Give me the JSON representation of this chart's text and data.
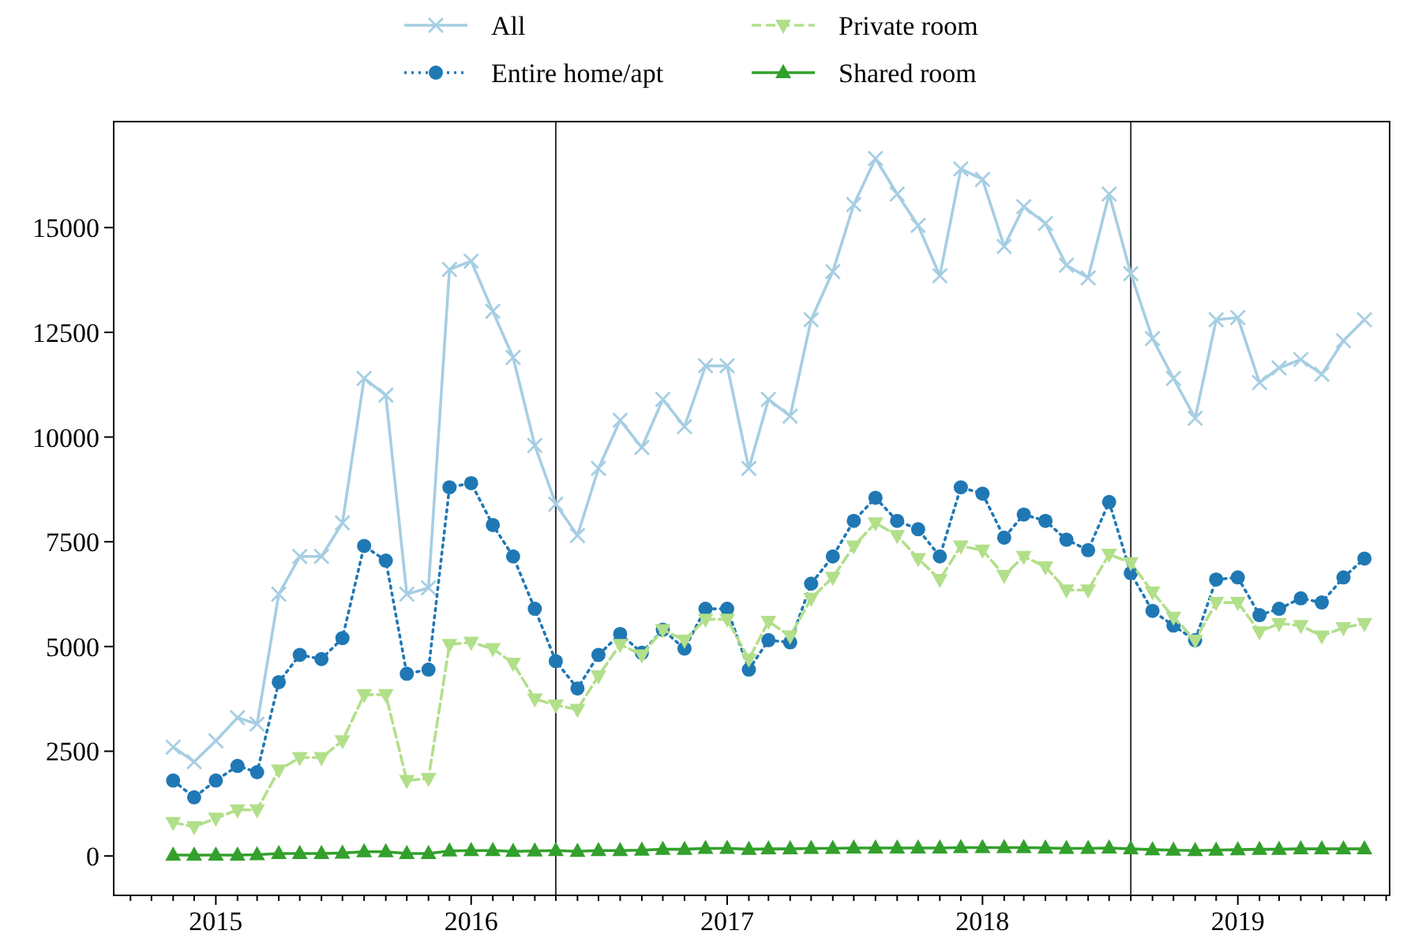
{
  "chart_data": {
    "type": "line",
    "x": [
      "2014-11",
      "2014-12",
      "2015-01",
      "2015-02",
      "2015-03",
      "2015-04",
      "2015-05",
      "2015-06",
      "2015-07",
      "2015-08",
      "2015-09",
      "2015-10",
      "2015-11",
      "2015-12",
      "2016-01",
      "2016-02",
      "2016-03",
      "2016-04",
      "2016-05",
      "2016-06",
      "2016-07",
      "2016-08",
      "2016-09",
      "2016-10",
      "2016-11",
      "2016-12",
      "2017-01",
      "2017-02",
      "2017-03",
      "2017-04",
      "2017-05",
      "2017-06",
      "2017-07",
      "2017-08",
      "2017-09",
      "2017-10",
      "2017-11",
      "2017-12",
      "2018-01",
      "2018-02",
      "2018-03",
      "2018-04",
      "2018-05",
      "2018-06",
      "2018-07",
      "2018-08",
      "2018-09",
      "2018-10",
      "2018-11",
      "2018-12",
      "2019-01",
      "2019-02",
      "2019-03",
      "2019-04",
      "2019-05",
      "2019-06",
      "2019-07"
    ],
    "series": [
      {
        "name": "All",
        "color": "#a6cee3",
        "marker": "cross",
        "line_style": "solid",
        "values": [
          2600,
          2250,
          2750,
          3300,
          3150,
          6250,
          7150,
          7150,
          7950,
          11400,
          11000,
          6250,
          6400,
          14000,
          14200,
          13000,
          11900,
          9800,
          8400,
          7650,
          9250,
          10400,
          9750,
          10900,
          10250,
          11700,
          11700,
          9250,
          10900,
          10500,
          12800,
          13950,
          15550,
          16650,
          15800,
          15050,
          13850,
          16400,
          16150,
          14550,
          15500,
          15100,
          14100,
          13800,
          15800,
          13900,
          12350,
          11400,
          10450,
          12800,
          12850,
          11300,
          11650,
          11850,
          11500,
          12300,
          12800
        ]
      },
      {
        "name": "Entire home/apt",
        "color": "#1f78b4",
        "marker": "circle",
        "line_style": "dotted",
        "values": [
          1800,
          1400,
          1800,
          2150,
          2000,
          4150,
          4800,
          4700,
          5200,
          7400,
          7050,
          4350,
          4450,
          8800,
          8900,
          7900,
          7150,
          5900,
          4650,
          4000,
          4800,
          5300,
          4850,
          5400,
          4950,
          5900,
          5900,
          4450,
          5150,
          5100,
          6500,
          7150,
          8000,
          8550,
          8000,
          7800,
          7150,
          8800,
          8650,
          7600,
          8150,
          8000,
          7550,
          7300,
          8450,
          6750,
          5850,
          5500,
          5150,
          6600,
          6650,
          5750,
          5900,
          6150,
          6050,
          6650,
          7100
        ]
      },
      {
        "name": "Private room",
        "color": "#b2df8a",
        "marker": "triangle-down",
        "line_style": "dashed",
        "values": [
          800,
          700,
          900,
          1100,
          1100,
          2050,
          2350,
          2350,
          2750,
          3850,
          3850,
          1800,
          1850,
          5050,
          5100,
          4950,
          4600,
          3750,
          3600,
          3500,
          4300,
          5050,
          4800,
          5400,
          5150,
          5650,
          5650,
          4700,
          5600,
          5250,
          6150,
          6650,
          7400,
          7950,
          7650,
          7100,
          6600,
          7400,
          7300,
          6700,
          7150,
          6900,
          6350,
          6350,
          7200,
          7000,
          6300,
          5700,
          5150,
          6050,
          6050,
          5350,
          5550,
          5500,
          5250,
          5450,
          5550
        ]
      },
      {
        "name": "Shared room",
        "color": "#33a02c",
        "marker": "triangle",
        "line_style": "solid",
        "values": [
          20,
          20,
          20,
          20,
          30,
          60,
          60,
          60,
          70,
          100,
          100,
          60,
          60,
          120,
          130,
          130,
          110,
          120,
          130,
          110,
          130,
          130,
          140,
          160,
          160,
          180,
          180,
          160,
          170,
          170,
          180,
          180,
          190,
          190,
          190,
          190,
          190,
          200,
          200,
          200,
          200,
          190,
          180,
          180,
          190,
          170,
          150,
          140,
          130,
          140,
          150,
          160,
          160,
          170,
          170,
          170,
          170
        ]
      }
    ],
    "xlim": [
      "2014-08-08",
      "2019-08-06"
    ],
    "ylim": [
      -940,
      17530
    ],
    "yticks": [
      0,
      2500,
      5000,
      7500,
      10000,
      12500,
      15000
    ],
    "xticks": [
      {
        "value": "2014-09",
        "label": null
      },
      {
        "value": "2014-10",
        "label": null
      },
      {
        "value": "2014-11",
        "label": null
      },
      {
        "value": "2014-12",
        "label": null
      },
      {
        "value": "2015-01",
        "label": "2015"
      },
      {
        "value": "2015-02",
        "label": null
      },
      {
        "value": "2015-03",
        "label": null
      },
      {
        "value": "2015-04",
        "label": null
      },
      {
        "value": "2015-05",
        "label": null
      },
      {
        "value": "2015-06",
        "label": null
      },
      {
        "value": "2015-07",
        "label": null
      },
      {
        "value": "2015-08",
        "label": null
      },
      {
        "value": "2015-09",
        "label": null
      },
      {
        "value": "2015-10",
        "label": null
      },
      {
        "value": "2015-11",
        "label": null
      },
      {
        "value": "2015-12",
        "label": null
      },
      {
        "value": "2016-01",
        "label": "2016"
      },
      {
        "value": "2016-02",
        "label": null
      },
      {
        "value": "2016-03",
        "label": null
      },
      {
        "value": "2016-04",
        "label": null
      },
      {
        "value": "2016-05",
        "label": null
      },
      {
        "value": "2016-06",
        "label": null
      },
      {
        "value": "2016-07",
        "label": null
      },
      {
        "value": "2016-08",
        "label": null
      },
      {
        "value": "2016-09",
        "label": null
      },
      {
        "value": "2016-10",
        "label": null
      },
      {
        "value": "2016-11",
        "label": null
      },
      {
        "value": "2016-12",
        "label": null
      },
      {
        "value": "2017-01",
        "label": "2017"
      },
      {
        "value": "2017-02",
        "label": null
      },
      {
        "value": "2017-03",
        "label": null
      },
      {
        "value": "2017-04",
        "label": null
      },
      {
        "value": "2017-05",
        "label": null
      },
      {
        "value": "2017-06",
        "label": null
      },
      {
        "value": "2017-07",
        "label": null
      },
      {
        "value": "2017-08",
        "label": null
      },
      {
        "value": "2017-09",
        "label": null
      },
      {
        "value": "2017-10",
        "label": null
      },
      {
        "value": "2017-11",
        "label": null
      },
      {
        "value": "2017-12",
        "label": null
      },
      {
        "value": "2018-01",
        "label": "2018"
      },
      {
        "value": "2018-02",
        "label": null
      },
      {
        "value": "2018-03",
        "label": null
      },
      {
        "value": "2018-04",
        "label": null
      },
      {
        "value": "2018-05",
        "label": null
      },
      {
        "value": "2018-06",
        "label": null
      },
      {
        "value": "2018-07",
        "label": null
      },
      {
        "value": "2018-08",
        "label": null
      },
      {
        "value": "2018-09",
        "label": null
      },
      {
        "value": "2018-10",
        "label": null
      },
      {
        "value": "2018-11",
        "label": null
      },
      {
        "value": "2018-12",
        "label": null
      },
      {
        "value": "2019-01",
        "label": "2019"
      },
      {
        "value": "2019-02",
        "label": null
      },
      {
        "value": "2019-03",
        "label": null
      },
      {
        "value": "2019-04",
        "label": null
      },
      {
        "value": "2019-05",
        "label": null
      },
      {
        "value": "2019-06",
        "label": null
      },
      {
        "value": "2019-07",
        "label": null
      },
      {
        "value": "2019-08",
        "label": null
      }
    ],
    "ref_lines": [
      {
        "axis": "x",
        "value": "2016-05",
        "color": "#333333"
      },
      {
        "axis": "x",
        "value": "2018-08",
        "color": "#333333"
      }
    ],
    "grid": false,
    "legend": "top"
  }
}
